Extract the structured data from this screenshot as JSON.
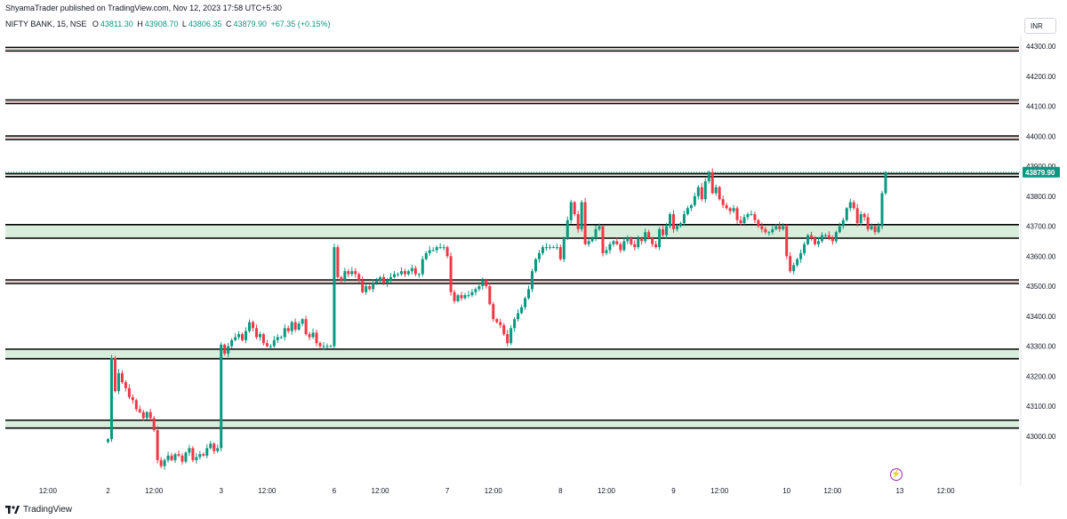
{
  "header": {
    "published": "ShyamaTrader published on TradingView.com, Nov 12, 2023 17:58 UTC+5:30",
    "symbol": "NIFTY BANK, 15, NSE",
    "open_label": "O",
    "open": "43811.30",
    "high_label": "H",
    "high": "43908.70",
    "low_label": "L",
    "low": "43806.35",
    "close_label": "C",
    "close": "43879.90",
    "change": "+67.35 (+0.15%)"
  },
  "currency_button": "INR",
  "footer": {
    "brand": "TradingView"
  },
  "colors": {
    "up": "#089981",
    "down": "#f23645",
    "zone": "#d8eddb",
    "line": "#000000",
    "text": "#131722"
  },
  "icons": {
    "logo": "tradingview-logo-icon",
    "flash": "lightning-icon"
  },
  "chart_data": {
    "type": "candlestick",
    "ylim": [
      42920,
      44320
    ],
    "y_ticks": [
      43000,
      43100,
      43200,
      43300,
      43400,
      43500,
      43600,
      43700,
      43800,
      43900,
      44000,
      44100,
      44200,
      44300
    ],
    "y_tick_labels": [
      "43000.00",
      "43100.00",
      "43200.00",
      "43300.00",
      "43400.00",
      "43500.00",
      "43600.00",
      "43700.00",
      "43800.00",
      "43900.00",
      "44000.00",
      "44100.00",
      "44200.00",
      "44300.00"
    ],
    "last_price": 43879.9,
    "last_price_label": "43879.90",
    "x_tick_labels": [
      "12:00",
      "2",
      "12:00",
      "3",
      "12:00",
      "6",
      "12:00",
      "7",
      "12:00",
      "8",
      "12:00",
      "9",
      "12:00",
      "10",
      "12:00",
      "13",
      "12:00"
    ],
    "x_tick_slots": [
      -17,
      0,
      13,
      32,
      45,
      64,
      77,
      96,
      109,
      128,
      141,
      160,
      173,
      192,
      205,
      224,
      237
    ],
    "double_lines": [
      44290,
      44115,
      43995,
      43515
    ],
    "zones": [
      [
        43865,
        43875
      ],
      [
        43660,
        43705
      ],
      [
        43258,
        43290
      ],
      [
        43027,
        43053
      ]
    ],
    "sessions": [
      {
        "day": "2",
        "start": 0,
        "points": [
          42990,
          43260,
          43150,
          43210,
          43180,
          43160,
          43130,
          43120,
          43090,
          43080,
          43060,
          43080,
          43060,
          43020,
          42920,
          42900,
          42920,
          42935,
          42920,
          42940,
          42935,
          42915,
          42945,
          42960,
          42920,
          42930,
          42940,
          42935,
          42960,
          42975,
          42950,
          42960
        ]
      },
      {
        "day": "3",
        "start": 32,
        "points": [
          43305,
          43275,
          43300,
          43320,
          43330,
          43340,
          43320,
          43350,
          43380,
          43360,
          43330,
          43340,
          43310,
          43300,
          43300,
          43320,
          43330,
          43330,
          43360,
          43350,
          43380,
          43355,
          43375,
          43390,
          43340,
          43330,
          43345,
          43310,
          43300,
          43300,
          43300,
          43300
        ]
      },
      {
        "day": "6",
        "start": 64,
        "points": [
          43630,
          43530,
          43520,
          43550,
          43540,
          43550,
          43540,
          43520,
          43480,
          43500,
          43490,
          43510,
          43520,
          43530,
          43510,
          43520,
          43530,
          43540,
          43540,
          43550,
          43540,
          43550,
          43560,
          43540,
          43540,
          43590,
          43610,
          43620,
          43620,
          43630,
          43630,
          43630
        ]
      },
      {
        "day": "7",
        "start": 96,
        "points": [
          43600,
          43480,
          43450,
          43470,
          43460,
          43470,
          43470,
          43480,
          43490,
          43500,
          43520,
          43500,
          43440,
          43390,
          43380,
          43370,
          43340,
          43310,
          43360,
          43390,
          43410,
          43430,
          43460,
          43490,
          43550,
          43590,
          43610,
          43630,
          43630,
          43630,
          43630,
          43630
        ]
      },
      {
        "day": "8",
        "start": 128,
        "points": [
          43590,
          43660,
          43720,
          43780,
          43740,
          43690,
          43780,
          43640,
          43650,
          43660,
          43690,
          43700,
          43610,
          43620,
          43640,
          43650,
          43640,
          43620,
          43650,
          43660,
          43640,
          43630,
          43660,
          43650,
          43680,
          43660,
          43640,
          43630,
          43690,
          43670,
          43700,
          43740
        ]
      },
      {
        "day": "9",
        "start": 160,
        "points": [
          43690,
          43700,
          43710,
          43740,
          43760,
          43770,
          43800,
          43830,
          43790,
          43850,
          43880,
          43810,
          43830,
          43790,
          43770,
          43760,
          43750,
          43760,
          43720,
          43710,
          43730,
          43740,
          43740,
          43720,
          43700,
          43690,
          43680,
          43680,
          43690,
          43700,
          43690,
          43700
        ]
      },
      {
        "day": "10",
        "start": 192,
        "points": [
          43600,
          43550,
          43570,
          43590,
          43610,
          43640,
          43670,
          43660,
          43640,
          43650,
          43670,
          43670,
          43660,
          43650,
          43680,
          43700,
          43720,
          43760,
          43780,
          43760,
          43710,
          43740,
          43730,
          43690,
          43700,
          43680,
          43700,
          43810,
          43880
        ]
      }
    ]
  }
}
